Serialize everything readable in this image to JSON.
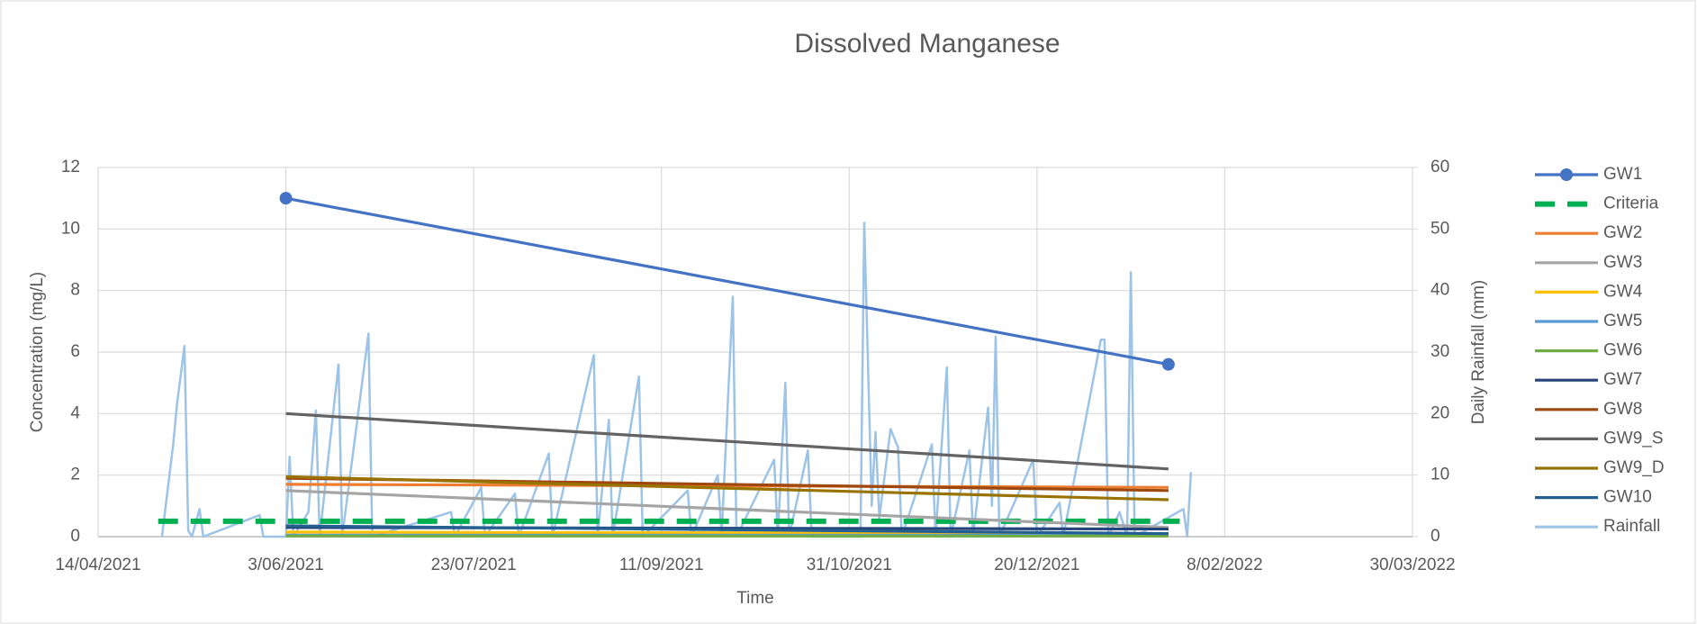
{
  "chart_data": {
    "type": "line",
    "title": "Dissolved Manganese",
    "x_label": "Time",
    "y_label": "Concentration (mg/L)",
    "y2_label": "Daily Rainfall (mm)",
    "xlim": [
      "2021-04-14",
      "2022-03-30"
    ],
    "xticks": [
      {
        "value": "2021-04-14",
        "label": "14/04/2021"
      },
      {
        "value": "2021-06-03",
        "label": "3/06/2021"
      },
      {
        "value": "2021-07-23",
        "label": "23/07/2021"
      },
      {
        "value": "2021-09-11",
        "label": "11/09/2021"
      },
      {
        "value": "2021-10-31",
        "label": "31/10/2021"
      },
      {
        "value": "2021-12-20",
        "label": "20/12/2021"
      },
      {
        "value": "2022-02-08",
        "label": "8/02/2022"
      },
      {
        "value": "2022-03-30",
        "label": "30/03/2022"
      }
    ],
    "ylim": [
      0,
      12
    ],
    "yticks": [
      0,
      2,
      4,
      6,
      8,
      10,
      12
    ],
    "y2lim": [
      0,
      60
    ],
    "y2ticks": [
      0,
      10,
      20,
      30,
      40,
      50,
      60
    ],
    "grid": true,
    "legend": "right",
    "series": [
      {
        "name": "GW1",
        "color": "#4472c4",
        "marker": true,
        "x": [
          "2021-06-03",
          "2022-01-24"
        ],
        "values": [
          11,
          5.6
        ]
      },
      {
        "name": "Criteria",
        "color": "#00b050",
        "dash": true,
        "x": [
          "2021-04-30",
          "2022-01-27"
        ],
        "values": [
          0.5,
          0.5
        ]
      },
      {
        "name": "GW2",
        "color": "#ed7d31",
        "x": [
          "2021-06-03",
          "2022-01-24"
        ],
        "values": [
          1.7,
          1.6
        ]
      },
      {
        "name": "GW3",
        "color": "#a5a5a5",
        "x": [
          "2021-06-03",
          "2022-01-24"
        ],
        "values": [
          1.5,
          0.3
        ]
      },
      {
        "name": "GW4",
        "color": "#ffc000",
        "x": [
          "2021-06-03",
          "2022-01-24"
        ],
        "values": [
          0.15,
          0.1
        ]
      },
      {
        "name": "GW5",
        "color": "#5b9bd5",
        "x": [
          "2021-06-03",
          "2022-01-24"
        ],
        "values": [
          0.05,
          0.05
        ]
      },
      {
        "name": "GW6",
        "color": "#70ad47",
        "x": [
          "2021-06-03",
          "2022-01-24"
        ],
        "values": [
          0.02,
          0.02
        ]
      },
      {
        "name": "GW7",
        "color": "#264478",
        "x": [
          "2021-06-03",
          "2022-01-24"
        ],
        "values": [
          0.3,
          0.25
        ]
      },
      {
        "name": "GW8",
        "color": "#9e480e",
        "x": [
          "2021-06-03",
          "2022-01-24"
        ],
        "values": [
          1.9,
          1.5
        ]
      },
      {
        "name": "GW9_S",
        "color": "#636363",
        "x": [
          "2021-06-03",
          "2022-01-24"
        ],
        "values": [
          4.0,
          2.2
        ]
      },
      {
        "name": "GW9_D",
        "color": "#997300",
        "x": [
          "2021-06-03",
          "2022-01-24"
        ],
        "values": [
          1.95,
          1.2
        ]
      },
      {
        "name": "GW10",
        "color": "#255e91",
        "x": [
          "2021-06-03",
          "2022-01-24"
        ],
        "values": [
          0.35,
          0.1
        ]
      },
      {
        "name": "Rainfall",
        "color": "#9dc3e6",
        "axis": "y2",
        "x": [
          "2021-05-01",
          "2021-05-04",
          "2021-05-05",
          "2021-05-07",
          "2021-05-08",
          "2021-05-09",
          "2021-05-11",
          "2021-05-12",
          "2021-05-27",
          "2021-05-28",
          "2021-06-03",
          "2021-06-04",
          "2021-06-05",
          "2021-06-09",
          "2021-06-11",
          "2021-06-12",
          "2021-06-17",
          "2021-06-18",
          "2021-06-25",
          "2021-06-26",
          "2021-07-17",
          "2021-07-18",
          "2021-07-25",
          "2021-07-26",
          "2021-08-03",
          "2021-08-04",
          "2021-08-12",
          "2021-08-13",
          "2021-08-24",
          "2021-08-25",
          "2021-08-28",
          "2021-08-29",
          "2021-09-05",
          "2021-09-06",
          "2021-09-18",
          "2021-09-19",
          "2021-09-26",
          "2021-09-27",
          "2021-09-30",
          "2021-10-01",
          "2021-10-11",
          "2021-10-12",
          "2021-10-14",
          "2021-10-15",
          "2021-10-20",
          "2021-10-21",
          "2021-11-03",
          "2021-11-04",
          "2021-11-06",
          "2021-11-07",
          "2021-11-08",
          "2021-11-11",
          "2021-11-13",
          "2021-11-14",
          "2021-11-22",
          "2021-11-23",
          "2021-11-26",
          "2021-11-27",
          "2021-12-02",
          "2021-12-03",
          "2021-12-07",
          "2021-12-08",
          "2021-12-09",
          "2021-12-10",
          "2021-12-19",
          "2021-12-20",
          "2021-12-26",
          "2021-12-27",
          "2022-01-06",
          "2022-01-07",
          "2022-01-08",
          "2022-01-11",
          "2022-01-13",
          "2022-01-14",
          "2022-01-15",
          "2022-01-28",
          "2022-01-29",
          "2022-01-30"
        ],
        "values": [
          0,
          15,
          21.5,
          31,
          1,
          0,
          4.5,
          0,
          3.5,
          0,
          0,
          13,
          0,
          4,
          20.5,
          0,
          28,
          0,
          33,
          0,
          4,
          0,
          8,
          0,
          7,
          0,
          13.5,
          0,
          29.5,
          0,
          19,
          0,
          26,
          0,
          7.5,
          0,
          10,
          0,
          39,
          0,
          12.5,
          0,
          25,
          0,
          14,
          0,
          0,
          51,
          5,
          17,
          3,
          17.5,
          14.5,
          0,
          15,
          0,
          27.5,
          0,
          14,
          0,
          21,
          5,
          32.5,
          0,
          12.5,
          0,
          5.5,
          0,
          32,
          32,
          0,
          4,
          0,
          43,
          0,
          4.5,
          0,
          10.5
        ]
      }
    ]
  }
}
